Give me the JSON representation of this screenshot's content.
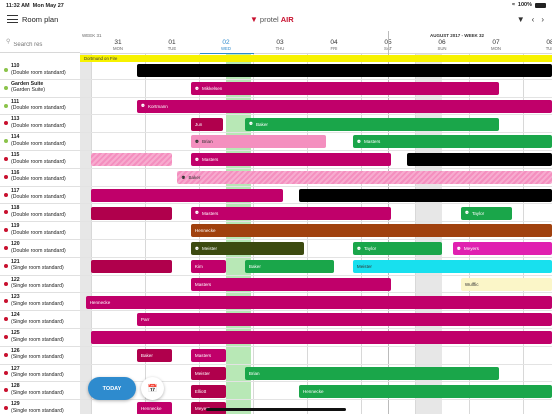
{
  "status": {
    "time": "11:32 AM",
    "date": "Mon May 27",
    "battery": "100%"
  },
  "nav": {
    "title": "Room plan",
    "logo_part1": "protel",
    "logo_part2": "AIR"
  },
  "search": {
    "placeholder": "Search res"
  },
  "header": {
    "week_left": "WEEK 31",
    "week_right": "AUGUST 2017 - WEEK 32",
    "days": [
      {
        "num": "31",
        "dow": "MON"
      },
      {
        "num": "01",
        "dow": "TUE"
      },
      {
        "num": "02",
        "dow": "WED",
        "today": true
      },
      {
        "num": "03",
        "dow": "THU"
      },
      {
        "num": "04",
        "dow": "FRI"
      },
      {
        "num": "05",
        "dow": "SAT"
      },
      {
        "num": "06",
        "dow": "SUN"
      },
      {
        "num": "07",
        "dow": "MON"
      },
      {
        "num": "08",
        "dow": "TUE"
      }
    ]
  },
  "banner": {
    "text": "Dortmund on Fire"
  },
  "rooms": [
    {
      "number": "110",
      "type": "(Double room standard)",
      "clean": true
    },
    {
      "number": "Garden Suite",
      "type": "(Garden Suite)",
      "clean": true
    },
    {
      "number": "111",
      "type": "(Double room standard)",
      "clean": true
    },
    {
      "number": "113",
      "type": "(Double room standard)"
    },
    {
      "number": "114",
      "type": "(Double room standard)",
      "clean": true
    },
    {
      "number": "115",
      "type": "(Double room standard)"
    },
    {
      "number": "116",
      "type": "(Double room standard)"
    },
    {
      "number": "117",
      "type": "(Double room standard)"
    },
    {
      "number": "118",
      "type": "(Double room standard)"
    },
    {
      "number": "119",
      "type": "(Double room standard)"
    },
    {
      "number": "120",
      "type": "(Double room standard)"
    },
    {
      "number": "121",
      "type": "(Single room standard)"
    },
    {
      "number": "122",
      "type": "(Single room standard)"
    },
    {
      "number": "123",
      "type": "(Single room standard)"
    },
    {
      "number": "124",
      "type": "(Single room standard)"
    },
    {
      "number": "125",
      "type": "(Single room standard)"
    },
    {
      "number": "126",
      "type": "(Single room standard)"
    },
    {
      "number": "127",
      "type": "(Single room standard)"
    },
    {
      "number": "128",
      "type": "(Single room standard)"
    },
    {
      "number": "129",
      "type": "(Single room standard)"
    }
  ],
  "reservations": [
    {
      "row": 0,
      "start": 0.85,
      "end": 9,
      "label": "",
      "color": "#000000"
    },
    {
      "row": 1,
      "start": 1.85,
      "end": 7.55,
      "label": "Mikkelsen",
      "color": "#c0006a",
      "group": true
    },
    {
      "row": 2,
      "start": 0.85,
      "end": 9,
      "label": "Kortmann",
      "color": "#c0006a",
      "group": true
    },
    {
      "row": 3,
      "start": 1.85,
      "end": 2.45,
      "label": "Jun",
      "color": "#b0004c"
    },
    {
      "row": 3,
      "start": 2.85,
      "end": 7.55,
      "label": "Baker",
      "color": "#1aa64a",
      "group": true
    },
    {
      "row": 4,
      "start": 1.85,
      "end": 4.35,
      "label": "Brian",
      "color": "#f48fbf",
      "group": true,
      "light": true
    },
    {
      "row": 4,
      "start": 4.85,
      "end": 8.55,
      "label": "Masters",
      "color": "#1aa64a",
      "group": true
    },
    {
      "row": 5,
      "start": 0,
      "end": 1.5,
      "label": "",
      "color": "#f48fbf",
      "hatched": true
    },
    {
      "row": 5,
      "start": 1.85,
      "end": 5.55,
      "label": "Masters",
      "color": "#c0006a",
      "group": true
    },
    {
      "row": 5,
      "start": 5.85,
      "end": 9,
      "label": "",
      "color": "#000000"
    },
    {
      "row": 6,
      "start": 1.6,
      "end": 9,
      "label": "Baker",
      "color": "#f48fbf",
      "group": true,
      "light": true,
      "hatched": true
    },
    {
      "row": 7,
      "start": 0,
      "end": 3.55,
      "label": "",
      "color": "#c0006a"
    },
    {
      "row": 7,
      "start": 3.85,
      "end": 9,
      "label": "",
      "color": "#000000"
    },
    {
      "row": 8,
      "start": 0,
      "end": 1.5,
      "label": "",
      "color": "#b0004c"
    },
    {
      "row": 8,
      "start": 1.85,
      "end": 5.55,
      "label": "Masters",
      "color": "#c0006a",
      "group": true
    },
    {
      "row": 8,
      "start": 6.85,
      "end": 7.8,
      "label": "Taylor",
      "color": "#1aa64a",
      "group": true
    },
    {
      "row": 9,
      "start": 1.85,
      "end": 9,
      "label": "Hennecke",
      "color": "#a0410e"
    },
    {
      "row": 10,
      "start": 1.85,
      "end": 3.95,
      "label": "Meister",
      "color": "#3c4a10",
      "group": true
    },
    {
      "row": 10,
      "start": 4.85,
      "end": 6.5,
      "label": "Taylor",
      "color": "#1aa64a",
      "group": true
    },
    {
      "row": 10,
      "start": 6.7,
      "end": 9,
      "label": "Meyers",
      "color": "#e020b0",
      "group": true
    },
    {
      "row": 11,
      "start": 0,
      "end": 1.5,
      "label": "",
      "color": "#b0004c"
    },
    {
      "row": 11,
      "start": 1.85,
      "end": 2.5,
      "label": "Kim",
      "color": "#c0006a"
    },
    {
      "row": 11,
      "start": 2.85,
      "end": 4.5,
      "label": "Baker",
      "color": "#1aa64a"
    },
    {
      "row": 11,
      "start": 4.85,
      "end": 9,
      "label": "Meister",
      "color": "#18e0ee",
      "light": true
    },
    {
      "row": 12,
      "start": 1.85,
      "end": 5.55,
      "label": "Masters",
      "color": "#c0006a"
    },
    {
      "row": 12,
      "start": 6.85,
      "end": 9,
      "label": "Wulffic",
      "color": "#fbf6c8",
      "light": true
    },
    {
      "row": 13,
      "start": -0.1,
      "end": 9,
      "label": "Hennecke",
      "color": "#c0006a"
    },
    {
      "row": 14,
      "start": 0.85,
      "end": 8.55,
      "label": "Parr",
      "color": "#c0006a"
    },
    {
      "row": 15,
      "start": 0,
      "end": 9,
      "label": "",
      "color": "#c0006a"
    },
    {
      "row": 16,
      "start": 0.85,
      "end": 1.5,
      "label": "Baker",
      "color": "#b0004c"
    },
    {
      "row": 16,
      "start": 1.85,
      "end": 2.5,
      "label": "Masters",
      "color": "#c0006a"
    },
    {
      "row": 17,
      "start": 1.85,
      "end": 2.5,
      "label": "Meister",
      "color": "#b0004c"
    },
    {
      "row": 17,
      "start": 2.85,
      "end": 7.55,
      "label": "Brian",
      "color": "#1aa64a"
    },
    {
      "row": 18,
      "start": 1.85,
      "end": 2.5,
      "label": "Elliott",
      "color": "#b0004c"
    },
    {
      "row": 18,
      "start": 3.85,
      "end": 9,
      "label": "Hennecke",
      "color": "#1aa64a"
    },
    {
      "row": 19,
      "start": 0.85,
      "end": 1.5,
      "label": "Hennecke",
      "color": "#c0006a"
    },
    {
      "row": 19,
      "start": 1.85,
      "end": 2.5,
      "label": "Meyers",
      "color": "#b0004c"
    }
  ],
  "buttons": {
    "today": "TODAY"
  }
}
